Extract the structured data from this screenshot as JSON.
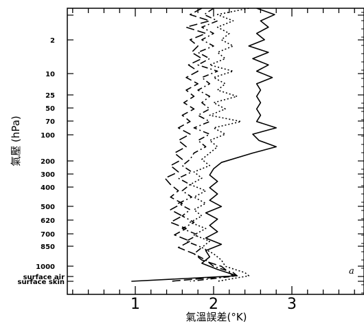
{
  "chart_data": {
    "type": "line",
    "xlabel": "氣溫誤差(°K)",
    "ylabel": "氣壓 (hPa)",
    "panel_label": "a",
    "xlim": [
      0.2,
      4
    ],
    "x_ticks": [
      "1",
      "2",
      "3"
    ],
    "y_levels": [
      {
        "value": 0.4,
        "label": ""
      },
      {
        "value": 2,
        "label": "2"
      },
      {
        "value": 10,
        "label": "10"
      },
      {
        "value": 25,
        "label": "25"
      },
      {
        "value": 50,
        "label": "50"
      },
      {
        "value": 70,
        "label": "70"
      },
      {
        "value": 100,
        "label": "100"
      },
      {
        "value": 200,
        "label": "200"
      },
      {
        "value": 300,
        "label": "300"
      },
      {
        "value": 400,
        "label": "400"
      },
      {
        "value": 500,
        "label": "500"
      },
      {
        "value": 620,
        "label": "620"
      },
      {
        "value": 700,
        "label": "700"
      },
      {
        "value": 850,
        "label": "850"
      },
      {
        "value": 1000,
        "label": "1000"
      },
      {
        "value": "surface air",
        "label": "surface air"
      },
      {
        "value": "surface skin",
        "label": "surface skin"
      }
    ],
    "series": [
      {
        "style": "solid",
        "points": [
          [
            2.55,
            0
          ],
          [
            2.78,
            0.4
          ],
          [
            2.6,
            0.8
          ],
          [
            2.7,
            1.2
          ],
          [
            2.55,
            1.6
          ],
          [
            2.65,
            2
          ],
          [
            2.45,
            2.4
          ],
          [
            2.7,
            2.8
          ],
          [
            2.5,
            3.2
          ],
          [
            2.7,
            3.6
          ],
          [
            2.55,
            4
          ],
          [
            2.75,
            4.4
          ],
          [
            2.55,
            4.8
          ],
          [
            2.6,
            5.2
          ],
          [
            2.55,
            5.6
          ],
          [
            2.6,
            6
          ],
          [
            2.55,
            6.4
          ],
          [
            2.6,
            6.8
          ],
          [
            2.55,
            7.2
          ],
          [
            2.8,
            7.6
          ],
          [
            2.5,
            8
          ],
          [
            2.58,
            8.4
          ],
          [
            2.8,
            8.8
          ],
          [
            2.5,
            9.2
          ],
          [
            2.1,
            9.8
          ],
          [
            2.0,
            10.2
          ],
          [
            1.95,
            10.6
          ],
          [
            2.05,
            11
          ],
          [
            1.95,
            11.4
          ],
          [
            2.05,
            11.8
          ],
          [
            1.95,
            12.2
          ],
          [
            2.1,
            12.6
          ],
          [
            1.9,
            13
          ],
          [
            2.05,
            13.4
          ],
          [
            1.95,
            13.8
          ],
          [
            2.05,
            14.2
          ],
          [
            1.9,
            14.6
          ],
          [
            2.1,
            15
          ],
          [
            1.9,
            15.4
          ],
          [
            1.95,
            15.8
          ],
          [
            1.85,
            16.2
          ],
          [
            2.05,
            16.6
          ],
          [
            2.3,
            17
          ],
          [
            0.95,
            17.35
          ]
        ]
      },
      {
        "style": "long-dash",
        "points": [
          [
            1.85,
            0
          ],
          [
            1.7,
            0.4
          ],
          [
            1.95,
            0.8
          ],
          [
            1.65,
            1.2
          ],
          [
            1.9,
            1.6
          ],
          [
            1.7,
            2
          ],
          [
            1.8,
            2.4
          ],
          [
            1.72,
            2.8
          ],
          [
            1.85,
            3.2
          ],
          [
            1.68,
            3.6
          ],
          [
            1.8,
            4
          ],
          [
            1.65,
            4.4
          ],
          [
            1.8,
            4.8
          ],
          [
            1.65,
            5.2
          ],
          [
            1.75,
            5.6
          ],
          [
            1.62,
            6
          ],
          [
            1.75,
            6.4
          ],
          [
            1.6,
            6.8
          ],
          [
            1.7,
            7.2
          ],
          [
            1.55,
            7.6
          ],
          [
            1.7,
            8
          ],
          [
            1.55,
            8.4
          ],
          [
            1.65,
            8.8
          ],
          [
            1.5,
            9.2
          ],
          [
            1.6,
            9.6
          ],
          [
            1.45,
            10
          ],
          [
            1.55,
            10.4
          ],
          [
            1.38,
            10.8
          ],
          [
            1.45,
            11.2
          ],
          [
            1.55,
            11.6
          ],
          [
            1.45,
            12
          ],
          [
            1.6,
            12.4
          ],
          [
            1.45,
            12.8
          ],
          [
            1.6,
            13.2
          ],
          [
            1.45,
            13.6
          ],
          [
            1.65,
            14
          ],
          [
            1.5,
            14.4
          ],
          [
            1.7,
            14.8
          ],
          [
            1.55,
            15.2
          ],
          [
            1.75,
            15.6
          ],
          [
            1.85,
            16
          ],
          [
            2.1,
            16.4
          ],
          [
            2.2,
            16.8
          ],
          [
            2.25,
            17
          ],
          [
            1.45,
            17.35
          ]
        ]
      },
      {
        "style": "dash-dot",
        "points": [
          [
            2.0,
            0
          ],
          [
            1.88,
            0.4
          ],
          [
            2.05,
            0.8
          ],
          [
            1.85,
            1.2
          ],
          [
            2.0,
            1.6
          ],
          [
            1.85,
            2
          ],
          [
            2.0,
            2.4
          ],
          [
            1.8,
            2.8
          ],
          [
            1.95,
            3.2
          ],
          [
            1.8,
            3.6
          ],
          [
            2.05,
            4
          ],
          [
            1.85,
            4.4
          ],
          [
            1.95,
            4.8
          ],
          [
            1.8,
            5.2
          ],
          [
            1.95,
            5.6
          ],
          [
            1.85,
            6
          ],
          [
            1.95,
            6.4
          ],
          [
            1.8,
            6.8
          ],
          [
            1.95,
            7.2
          ],
          [
            1.75,
            7.6
          ],
          [
            1.95,
            8
          ],
          [
            1.8,
            8.4
          ],
          [
            1.9,
            8.8
          ],
          [
            1.75,
            9.2
          ],
          [
            1.7,
            9.6
          ],
          [
            1.6,
            10
          ],
          [
            1.72,
            10.4
          ],
          [
            1.55,
            10.8
          ],
          [
            1.7,
            11.2
          ],
          [
            1.6,
            11.6
          ],
          [
            1.72,
            12
          ],
          [
            1.55,
            12.4
          ],
          [
            1.7,
            12.8
          ],
          [
            1.6,
            13.2
          ],
          [
            1.75,
            13.6
          ],
          [
            1.6,
            14
          ],
          [
            1.8,
            14.4
          ],
          [
            1.65,
            14.8
          ],
          [
            1.85,
            15.2
          ],
          [
            1.75,
            15.6
          ],
          [
            1.9,
            16
          ],
          [
            2.0,
            16.4
          ],
          [
            2.25,
            16.8
          ],
          [
            2.3,
            17
          ],
          [
            1.7,
            17.35
          ]
        ]
      },
      {
        "style": "dotted",
        "points": [
          [
            2.45,
            0
          ],
          [
            2.05,
            0.4
          ],
          [
            2.25,
            0.8
          ],
          [
            2.05,
            1.2
          ],
          [
            2.2,
            1.6
          ],
          [
            2.1,
            2
          ],
          [
            2.25,
            2.4
          ],
          [
            2.05,
            2.8
          ],
          [
            2.15,
            3.2
          ],
          [
            1.95,
            3.6
          ],
          [
            2.25,
            4
          ],
          [
            2.0,
            4.4
          ],
          [
            2.15,
            4.8
          ],
          [
            2.05,
            5.2
          ],
          [
            2.3,
            5.6
          ],
          [
            2.0,
            6
          ],
          [
            2.15,
            6.4
          ],
          [
            1.95,
            6.8
          ],
          [
            2.35,
            7.2
          ],
          [
            2.0,
            7.6
          ],
          [
            2.15,
            8
          ],
          [
            1.95,
            8.4
          ],
          [
            2.05,
            8.8
          ],
          [
            1.95,
            9.2
          ],
          [
            1.85,
            9.6
          ],
          [
            1.95,
            10
          ],
          [
            1.75,
            10.4
          ],
          [
            1.85,
            10.8
          ],
          [
            1.7,
            11.2
          ],
          [
            1.9,
            11.6
          ],
          [
            1.75,
            12
          ],
          [
            1.9,
            12.4
          ],
          [
            1.75,
            12.8
          ],
          [
            1.85,
            13.2
          ],
          [
            1.7,
            13.6
          ],
          [
            1.9,
            14
          ],
          [
            1.75,
            14.4
          ],
          [
            1.95,
            14.8
          ],
          [
            1.85,
            15.2
          ],
          [
            2.0,
            15.6
          ],
          [
            2.1,
            16
          ],
          [
            2.15,
            16.4
          ],
          [
            2.4,
            16.8
          ],
          [
            2.45,
            17
          ],
          [
            2.05,
            17.35
          ]
        ]
      }
    ]
  }
}
